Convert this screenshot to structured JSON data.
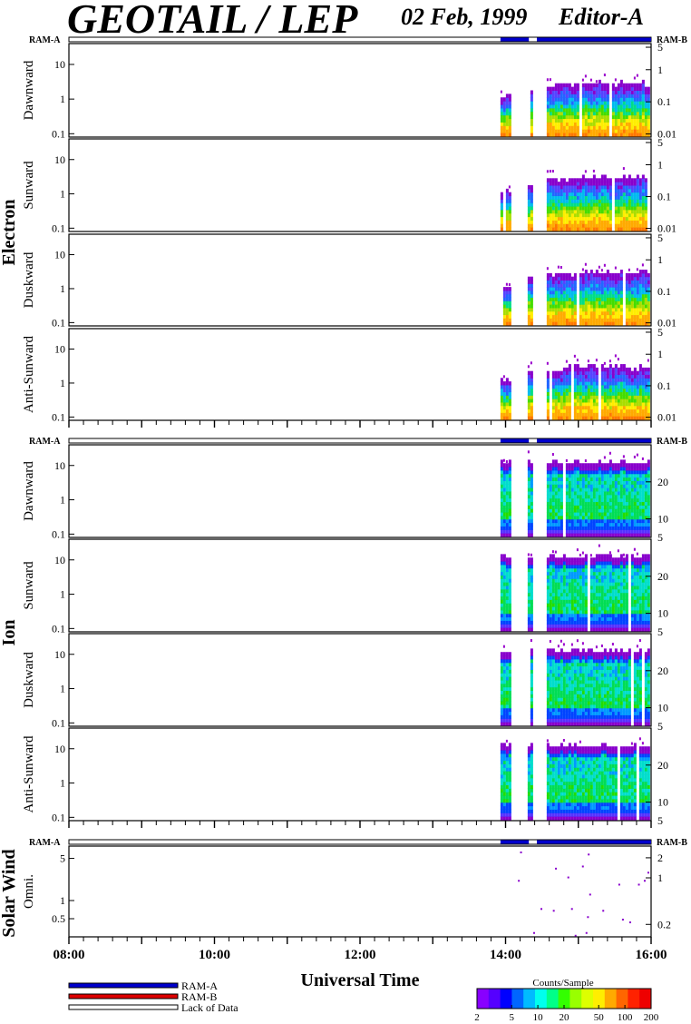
{
  "header": {
    "title": "GEOTAIL / LEP",
    "date": "02 Feb, 1999",
    "editor": "Editor-A"
  },
  "ram_labels": {
    "left": "RAM-A",
    "right": "RAM-B"
  },
  "groups": [
    {
      "name": "Electron",
      "panels": [
        "Dawnward",
        "Sunward",
        "Duskward",
        "Anti-Sunward"
      ]
    },
    {
      "name": "Ion",
      "panels": [
        "Dawnward",
        "Sunward",
        "Duskward",
        "Anti-Sunward"
      ]
    },
    {
      "name": "Solar Wind",
      "panels": [
        "Omni."
      ]
    }
  ],
  "legend": {
    "items": [
      {
        "label": "RAM-A",
        "color": "#0000cc"
      },
      {
        "label": "RAM-B",
        "color": "#dd0000"
      },
      {
        "label": "Lack of Data",
        "color": "#ffffff"
      }
    ],
    "colorbar_title": "Counts/Sample",
    "colorbar_ticks": [
      "2",
      "5",
      "10",
      "20",
      "50",
      "100",
      "200"
    ]
  },
  "chart_data": {
    "type": "heatmap",
    "xlabel": "Universal Time",
    "x_ticks": [
      "08:00",
      "10:00",
      "12:00",
      "14:00",
      "16:00"
    ],
    "x_range_hours": [
      8,
      16
    ],
    "data_start_hour": 13.93,
    "data_gaps_hours": [
      [
        14.05,
        14.3
      ],
      [
        14.35,
        14.55
      ]
    ],
    "ram_a_bar_hours": [
      [
        13.93,
        14.32
      ],
      [
        14.43,
        16.0
      ]
    ],
    "electron": {
      "left_ticks": [
        "0.1",
        "1",
        "10"
      ],
      "left_range": [
        0.08,
        40
      ],
      "right_ticks": [
        "0.01",
        "0.1",
        "1",
        "5"
      ],
      "right_range": [
        0.008,
        6.5
      ]
    },
    "ion": {
      "left_ticks": [
        "0.1",
        "1",
        "10"
      ],
      "left_range": [
        0.08,
        40
      ],
      "right_ticks": [
        "5",
        "10",
        "20"
      ],
      "right_range": [
        5,
        30
      ]
    },
    "solar_wind": {
      "left_ticks": [
        "0.5",
        "1",
        "5"
      ],
      "left_range": [
        0.25,
        8
      ],
      "right_ticks": [
        "0.2",
        "1",
        "2"
      ],
      "right_range": [
        0.13,
        3
      ]
    },
    "solar_wind_points": [
      [
        14.2,
        6.5
      ],
      [
        14.17,
        2.2
      ],
      [
        14.48,
        0.75
      ],
      [
        14.65,
        0.7
      ],
      [
        14.68,
        3.5
      ],
      [
        14.85,
        2.5
      ],
      [
        14.9,
        0.75
      ],
      [
        15.05,
        3.8
      ],
      [
        15.13,
        6.0
      ],
      [
        15.15,
        1.3
      ],
      [
        15.12,
        0.55
      ],
      [
        15.33,
        0.7
      ],
      [
        15.55,
        1.9
      ],
      [
        15.6,
        0.5
      ],
      [
        15.82,
        1.9
      ],
      [
        15.9,
        2.2
      ],
      [
        15.95,
        3.0
      ],
      [
        15.7,
        0.45
      ],
      [
        15.1,
        0.3
      ],
      [
        14.95,
        0.27
      ],
      [
        14.38,
        0.3
      ]
    ],
    "colorbar_range": [
      2,
      200
    ]
  }
}
